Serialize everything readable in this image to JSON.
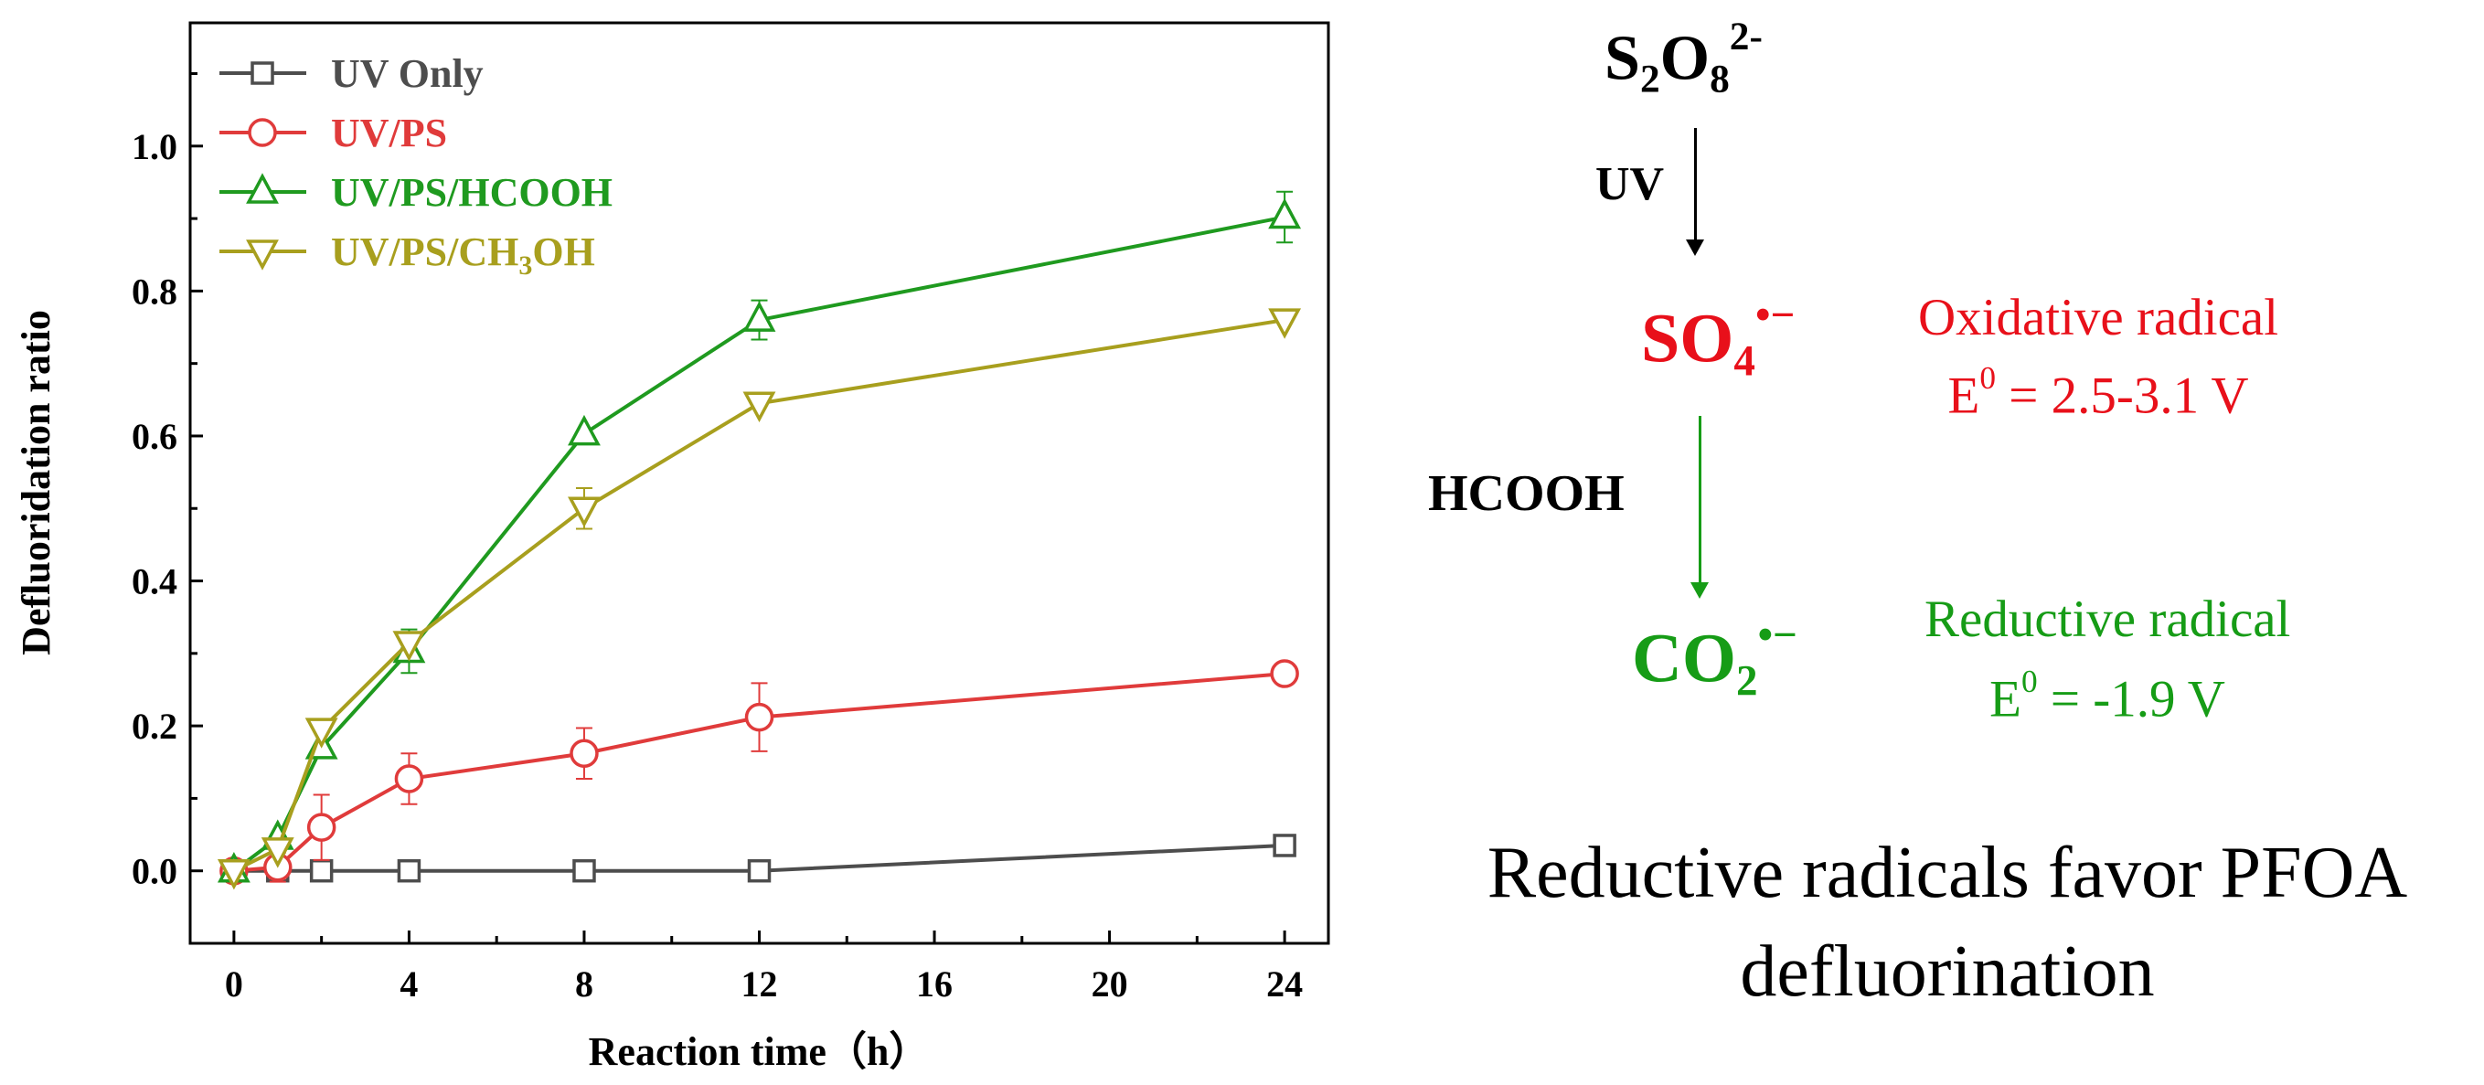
{
  "chart_data": {
    "type": "line",
    "xlabel": "Reaction time（h）",
    "ylabel": "Defluoridation ratio",
    "xlim": [
      -1,
      25
    ],
    "ylim": [
      -0.1,
      1.17
    ],
    "x_ticks": [
      0,
      4,
      8,
      12,
      16,
      20,
      24
    ],
    "y_ticks": [
      0.0,
      0.2,
      0.4,
      0.6,
      0.8,
      1.0
    ],
    "y_tick_labels": [
      "0.0",
      "0.2",
      "0.4",
      "0.6",
      "0.8",
      "1.0"
    ],
    "legend_position": "top-left",
    "series": [
      {
        "name": "UV Only",
        "label_html": "UV Only",
        "color": "#4d4d4d",
        "marker": "square",
        "x": [
          0,
          1,
          2,
          4,
          8,
          12,
          24
        ],
        "y": [
          0,
          0,
          0,
          0,
          0,
          0,
          0.035
        ],
        "err": [
          0,
          0,
          0,
          0,
          0,
          0,
          0
        ]
      },
      {
        "name": "UV/PS",
        "label_html": "UV/PS",
        "color": "#e03b3b",
        "marker": "circle",
        "x": [
          0,
          1,
          2,
          4,
          8,
          12,
          24
        ],
        "y": [
          0,
          0.005,
          0.06,
          0.127,
          0.162,
          0.212,
          0.272
        ],
        "err": [
          0,
          0.02,
          0.045,
          0.035,
          0.035,
          0.047,
          0.01
        ]
      },
      {
        "name": "UV/PS/HCOOH",
        "label_html": "UV/PS/HCOOH",
        "color": "#1f9a1f",
        "marker": "triangle-up",
        "x": [
          0,
          1,
          2,
          4,
          8,
          12,
          24
        ],
        "y": [
          0,
          0.045,
          0.17,
          0.303,
          0.603,
          0.76,
          0.902
        ],
        "err": [
          0,
          0,
          0,
          0.03,
          0,
          0.027,
          0.035
        ]
      },
      {
        "name": "UV/PS/CH3OH",
        "label_html": "UV/PS/CH<sub>3</sub>OH",
        "color": "#a89f1e",
        "marker": "triangle-down",
        "x": [
          0,
          1,
          2,
          4,
          8,
          12,
          24
        ],
        "y": [
          0,
          0.03,
          0.195,
          0.315,
          0.5,
          0.645,
          0.76
        ],
        "err": [
          0,
          0,
          0,
          0,
          0.028,
          0,
          0
        ]
      }
    ]
  },
  "scheme": {
    "persulfate_html": "S<sub>2</sub>O<sub>8</sub><sup>2-</sup>",
    "uv_label": "UV",
    "sulfate_radical_html": "SO<sub>4</sub><sup>•−</sup>",
    "oxidative_title": "Oxidative radical",
    "oxidative_potential_html": "E<sup>0</sup> = 2.5-3.1 V",
    "hcooh_label": "HCOOH",
    "co2_radical_html": "CO<sub>2</sub><sup>•−</sup>",
    "reductive_title": "Reductive radical",
    "reductive_potential_html": "E<sup>0</sup> = -1.9 V",
    "conclusion_line1": "Reductive radicals favor PFOA",
    "conclusion_line2": "defluorination",
    "colors": {
      "red": "#e8101a",
      "green": "#169c16",
      "black": "#000000"
    }
  }
}
